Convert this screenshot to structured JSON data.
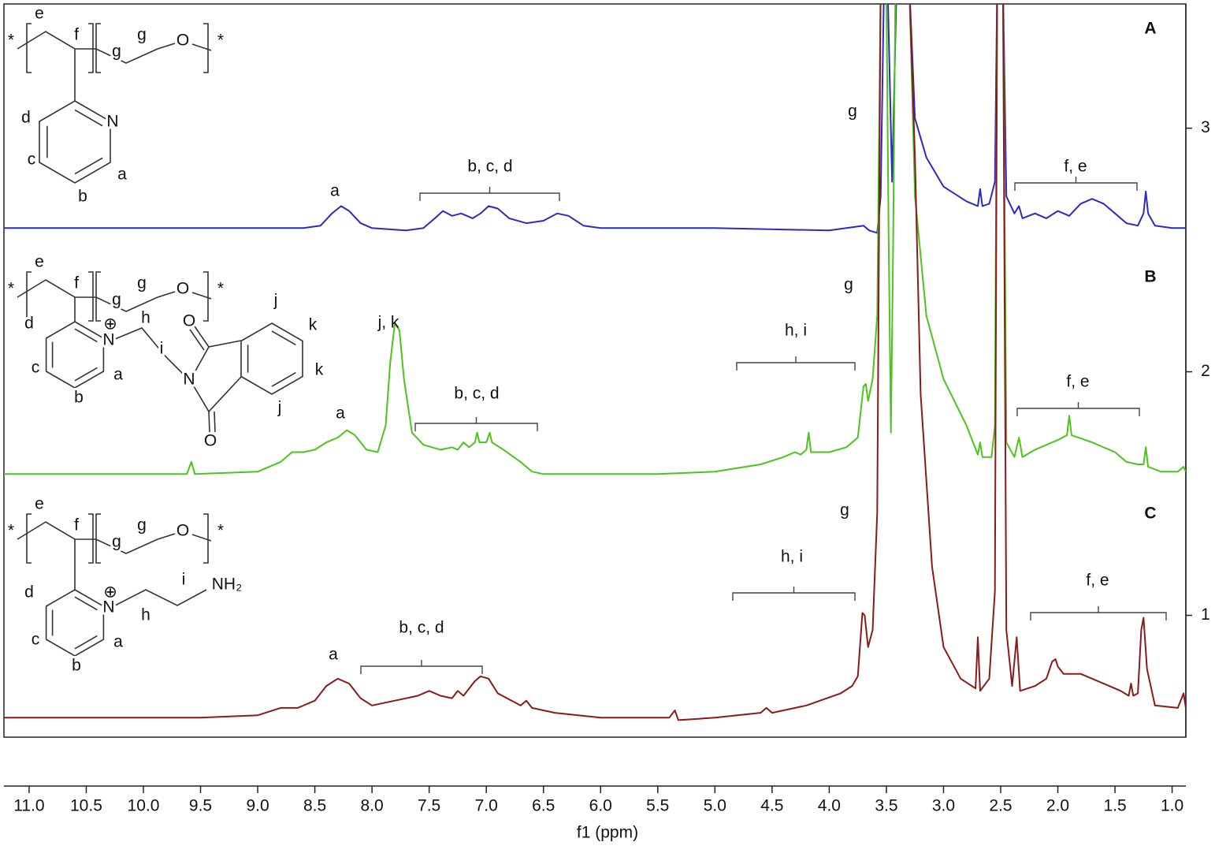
{
  "chart_data": {
    "type": "line",
    "x_label": "f1 (ppm)",
    "xlim": [
      11.22,
      0.88
    ],
    "xticks": [
      {
        "value": 11,
        "label": "11.0"
      },
      {
        "value": 10.5,
        "label": "10.5"
      },
      {
        "value": 10,
        "label": "10.0"
      },
      {
        "value": 9.5,
        "label": "9.5"
      },
      {
        "value": 9,
        "label": "9.0"
      },
      {
        "value": 8.5,
        "label": "8.5"
      },
      {
        "value": 8,
        "label": "8.0"
      },
      {
        "value": 7.5,
        "label": "7.5"
      },
      {
        "value": 7,
        "label": "7.0"
      },
      {
        "value": 6.5,
        "label": "6.5"
      },
      {
        "value": 6,
        "label": "6.0"
      },
      {
        "value": 5.5,
        "label": "5.5"
      },
      {
        "value": 5,
        "label": "5.0"
      },
      {
        "value": 4.5,
        "label": "4.5"
      },
      {
        "value": 4,
        "label": "4.0"
      },
      {
        "value": 3.5,
        "label": "3.5"
      },
      {
        "value": 3,
        "label": "3.0"
      },
      {
        "value": 2.5,
        "label": "2.5"
      },
      {
        "value": 2,
        "label": "2.0"
      },
      {
        "value": 1.5,
        "label": "1.5"
      },
      {
        "value": 1,
        "label": "1.0"
      }
    ],
    "ylim": [
      0.5,
      3.51
    ],
    "yticks": [
      1,
      2,
      3
    ],
    "y_axis_side": "right",
    "series": [
      {
        "name": "A",
        "color": "#2b2bc4",
        "x": [
          11.22,
          8.6,
          8.45,
          8.35,
          8.27,
          8.2,
          8.1,
          8.0,
          7.7,
          7.55,
          7.45,
          7.38,
          7.3,
          7.22,
          7.12,
          7.05,
          6.98,
          6.9,
          6.8,
          6.65,
          6.5,
          6.38,
          6.28,
          6.15,
          6.0,
          5.0,
          4.0,
          3.7,
          3.65,
          3.58,
          3.55,
          3.52,
          3.49,
          3.45,
          3.41,
          3.3,
          3.25,
          3.15,
          3.0,
          2.8,
          2.7,
          2.68,
          2.66,
          2.6,
          2.55,
          2.53,
          2.48,
          2.45,
          2.38,
          2.34,
          2.31,
          2.2,
          2.1,
          2.0,
          1.9,
          1.8,
          1.7,
          1.6,
          1.5,
          1.4,
          1.3,
          1.25,
          1.23,
          1.21,
          1.15,
          1.0,
          0.88
        ],
        "values": [
          2.59,
          2.59,
          2.6,
          2.65,
          2.68,
          2.66,
          2.61,
          2.59,
          2.58,
          2.59,
          2.63,
          2.66,
          2.64,
          2.65,
          2.63,
          2.65,
          2.68,
          2.67,
          2.63,
          2.61,
          2.62,
          2.65,
          2.64,
          2.6,
          2.59,
          2.59,
          2.58,
          2.6,
          2.58,
          2.57,
          2.72,
          3.6,
          3.6,
          2.78,
          3.6,
          3.6,
          3.04,
          2.88,
          2.76,
          2.7,
          2.68,
          2.75,
          2.68,
          2.69,
          2.78,
          3.6,
          3.6,
          2.72,
          2.65,
          2.68,
          2.63,
          2.65,
          2.63,
          2.66,
          2.64,
          2.69,
          2.71,
          2.69,
          2.65,
          2.61,
          2.6,
          2.65,
          2.74,
          2.65,
          2.6,
          2.59,
          2.59
        ]
      },
      {
        "name": "B",
        "color": "#4cc41c",
        "x": [
          11.22,
          9.62,
          9.58,
          9.55,
          9.0,
          8.8,
          8.7,
          8.6,
          8.5,
          8.4,
          8.3,
          8.22,
          8.15,
          8.05,
          7.95,
          7.88,
          7.84,
          7.8,
          7.76,
          7.72,
          7.65,
          7.55,
          7.4,
          7.3,
          7.25,
          7.2,
          7.15,
          7.1,
          7.08,
          7.06,
          7.0,
          6.97,
          6.95,
          6.85,
          6.7,
          6.6,
          6.5,
          5.5,
          5.0,
          4.6,
          4.4,
          4.3,
          4.25,
          4.2,
          4.18,
          4.16,
          4.0,
          3.85,
          3.75,
          3.7,
          3.68,
          3.66,
          3.62,
          3.58,
          3.55,
          3.5,
          3.48,
          3.46,
          3.44,
          3.42,
          3.3,
          3.25,
          3.15,
          3.0,
          2.8,
          2.7,
          2.68,
          2.66,
          2.58,
          2.55,
          2.53,
          2.48,
          2.45,
          2.38,
          2.34,
          2.31,
          2.2,
          2.0,
          1.92,
          1.9,
          1.88,
          1.7,
          1.5,
          1.4,
          1.3,
          1.25,
          1.23,
          1.21,
          1.1,
          0.95,
          0.9,
          0.88
        ],
        "values": [
          1.58,
          1.58,
          1.63,
          1.58,
          1.59,
          1.63,
          1.67,
          1.67,
          1.68,
          1.71,
          1.73,
          1.76,
          1.74,
          1.68,
          1.67,
          1.78,
          2.04,
          2.2,
          2.17,
          1.97,
          1.75,
          1.7,
          1.68,
          1.69,
          1.68,
          1.71,
          1.69,
          1.71,
          1.75,
          1.71,
          1.71,
          1.75,
          1.71,
          1.68,
          1.63,
          1.59,
          1.58,
          1.58,
          1.59,
          1.62,
          1.65,
          1.67,
          1.66,
          1.68,
          1.75,
          1.67,
          1.67,
          1.69,
          1.73,
          1.94,
          1.95,
          1.88,
          1.97,
          2.23,
          3.6,
          3.6,
          2.55,
          1.75,
          2.55,
          3.6,
          3.6,
          2.72,
          2.23,
          1.97,
          1.78,
          1.66,
          1.71,
          1.65,
          1.65,
          1.78,
          3.6,
          3.6,
          1.71,
          1.65,
          1.73,
          1.65,
          1.68,
          1.72,
          1.74,
          1.82,
          1.74,
          1.71,
          1.67,
          1.63,
          1.62,
          1.62,
          1.69,
          1.61,
          1.59,
          1.59,
          1.61,
          1.59
        ]
      },
      {
        "name": "C",
        "color": "#8b1a1a",
        "x": [
          11.22,
          9.5,
          9.0,
          8.8,
          8.65,
          8.5,
          8.4,
          8.3,
          8.2,
          8.1,
          8.0,
          7.8,
          7.6,
          7.5,
          7.4,
          7.3,
          7.25,
          7.2,
          7.1,
          7.05,
          6.98,
          6.9,
          6.7,
          6.65,
          6.6,
          6.4,
          6.0,
          5.4,
          5.35,
          5.32,
          5.0,
          4.6,
          4.55,
          4.5,
          4.2,
          3.9,
          3.8,
          3.75,
          3.71,
          3.69,
          3.66,
          3.62,
          3.58,
          3.55,
          3.3,
          3.25,
          3.2,
          3.1,
          3.0,
          2.85,
          2.72,
          2.7,
          2.68,
          2.6,
          2.55,
          2.53,
          2.48,
          2.45,
          2.4,
          2.36,
          2.33,
          2.2,
          2.1,
          2.05,
          2.02,
          2.0,
          1.95,
          1.8,
          1.7,
          1.55,
          1.45,
          1.38,
          1.36,
          1.34,
          1.3,
          1.27,
          1.25,
          1.22,
          1.15,
          0.95,
          0.9,
          0.88
        ],
        "values": [
          0.58,
          0.58,
          0.59,
          0.62,
          0.62,
          0.65,
          0.71,
          0.74,
          0.72,
          0.66,
          0.63,
          0.65,
          0.67,
          0.69,
          0.67,
          0.66,
          0.69,
          0.67,
          0.73,
          0.75,
          0.74,
          0.68,
          0.63,
          0.65,
          0.62,
          0.6,
          0.58,
          0.58,
          0.61,
          0.57,
          0.58,
          0.6,
          0.62,
          0.6,
          0.63,
          0.68,
          0.71,
          0.75,
          1.01,
          1.0,
          0.87,
          0.94,
          1.42,
          3.6,
          3.6,
          2.88,
          1.91,
          1.2,
          0.87,
          0.74,
          0.7,
          0.91,
          0.69,
          0.74,
          1.1,
          3.6,
          3.6,
          0.94,
          0.71,
          0.91,
          0.69,
          0.71,
          0.74,
          0.81,
          0.82,
          0.79,
          0.76,
          0.76,
          0.74,
          0.71,
          0.69,
          0.67,
          0.72,
          0.67,
          0.68,
          0.94,
          0.99,
          0.78,
          0.63,
          0.62,
          0.68,
          0.62
        ]
      }
    ],
    "peak_labels": [
      [
        "a",
        "b, c, d",
        "g",
        "f, e"
      ],
      [
        "j, k",
        "a",
        "b, c, d",
        "h, i",
        "g",
        "f, e"
      ],
      [
        "a",
        "b, c, d",
        "h, i",
        "g",
        "f, e"
      ]
    ],
    "structures": [
      {
        "labels": [
          "*",
          "e",
          "f",
          "g",
          "g",
          "O",
          "*",
          "d",
          "N",
          "c",
          "a",
          "b"
        ]
      },
      {
        "labels": [
          "*",
          "e",
          "f",
          "g",
          "g",
          "O",
          "*",
          "d",
          "N",
          "⊕",
          "h",
          "i",
          "c",
          "a",
          "b",
          "N",
          "O",
          "O",
          "j",
          "k",
          "k",
          "j"
        ]
      },
      {
        "labels": [
          "*",
          "e",
          "f",
          "g",
          "g",
          "O",
          "*",
          "d",
          "N",
          "⊕",
          "h",
          "i",
          "NH₂",
          "c",
          "a",
          "b"
        ]
      }
    ]
  }
}
